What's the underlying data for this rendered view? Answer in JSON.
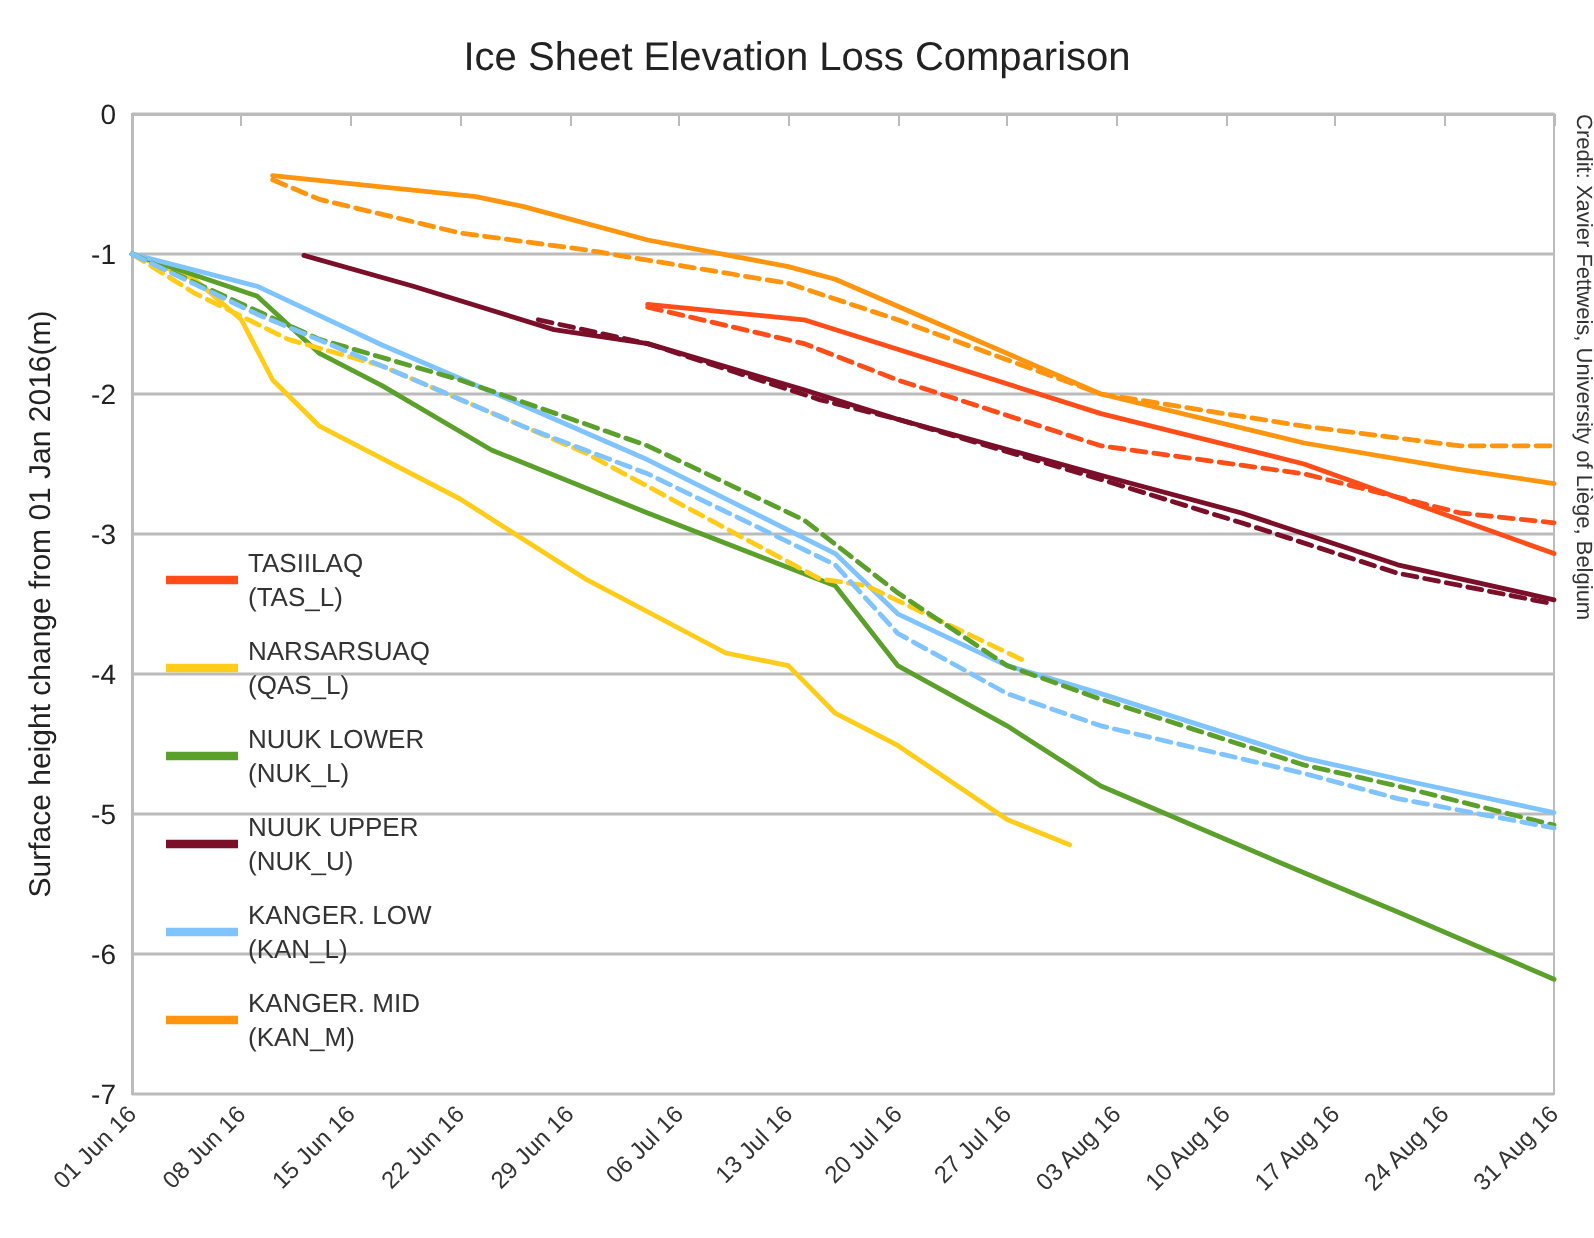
{
  "chart_data": {
    "type": "line",
    "title": "Ice Sheet Elevation Loss Comparison",
    "ylabel": "Surface height change from 01 Jan 2016(m)",
    "annotations": [
      "Credit: Xavier Fettweis, University of Liège, Belgium"
    ],
    "xlim": [
      "2016-06-01",
      "2016-08-31"
    ],
    "xticks": [
      {
        "value": "2016-06-01",
        "label": "01 Jun 16"
      },
      {
        "value": "2016-06-08",
        "label": "08 Jun 16"
      },
      {
        "value": "2016-06-15",
        "label": "15 Jun 16"
      },
      {
        "value": "2016-06-22",
        "label": "22 Jun 16"
      },
      {
        "value": "2016-06-29",
        "label": "29 Jun 16"
      },
      {
        "value": "2016-07-06",
        "label": "06 Jul 16"
      },
      {
        "value": "2016-07-13",
        "label": "13 Jul 16"
      },
      {
        "value": "2016-07-20",
        "label": "20 Jul 16"
      },
      {
        "value": "2016-07-27",
        "label": "27 Jul 16"
      },
      {
        "value": "2016-08-03",
        "label": "03 Aug 16"
      },
      {
        "value": "2016-08-10",
        "label": "10 Aug 16"
      },
      {
        "value": "2016-08-17",
        "label": "17 Aug 16"
      },
      {
        "value": "2016-08-24",
        "label": "24 Aug 16"
      },
      {
        "value": "2016-08-31",
        "label": "31 Aug 16"
      }
    ],
    "ylim": [
      -7,
      0
    ],
    "yticks": [
      -7,
      -6,
      -5,
      -4,
      -3,
      -2,
      -1,
      0
    ],
    "grid": "y",
    "legend": "left",
    "series": [
      {
        "name": "TASIILAQ\n(TAS_L)",
        "color": "#ff4d1a",
        "line_style": "solid",
        "x": [
          "2016-07-04",
          "2016-07-14",
          "2016-07-20",
          "2016-08-02",
          "2016-08-15",
          "2016-08-25",
          "2016-08-31"
        ],
        "values": [
          -1.36,
          -1.47,
          -1.68,
          -2.14,
          -2.5,
          -2.9,
          -3.14
        ]
      },
      {
        "name": "NARSARSUAQ\n(QAS_L)",
        "color": "#ffcc1a",
        "line_style": "solid",
        "x": [
          "2016-06-01",
          "2016-06-05",
          "2016-06-08",
          "2016-06-10",
          "2016-06-13",
          "2016-06-22",
          "2016-06-30",
          "2016-07-09",
          "2016-07-13",
          "2016-07-16",
          "2016-07-20",
          "2016-07-27",
          "2016-07-31"
        ],
        "values": [
          -1.0,
          -1.18,
          -1.47,
          -1.9,
          -2.23,
          -2.75,
          -3.32,
          -3.85,
          -3.94,
          -4.28,
          -4.51,
          -5.04,
          -5.22
        ]
      },
      {
        "name": "NUUK LOWER\n(NUK_L)",
        "color": "#5ca02c",
        "line_style": "solid",
        "x": [
          "2016-06-01",
          "2016-06-09",
          "2016-06-13",
          "2016-06-17",
          "2016-06-24",
          "2016-07-04",
          "2016-07-16",
          "2016-07-20",
          "2016-07-27",
          "2016-08-02",
          "2016-08-15",
          "2016-08-21",
          "2016-08-31"
        ],
        "values": [
          -1.0,
          -1.3,
          -1.71,
          -1.94,
          -2.4,
          -2.85,
          -3.37,
          -3.94,
          -4.37,
          -4.8,
          -5.42,
          -5.7,
          -6.18
        ]
      },
      {
        "name": "NUUK UPPER\n(NUK_U)",
        "color": "#7b0f2a",
        "line_style": "solid",
        "x": [
          "2016-06-12",
          "2016-06-19",
          "2016-06-28",
          "2016-07-04",
          "2016-07-14",
          "2016-07-20",
          "2016-08-02",
          "2016-08-11",
          "2016-08-21",
          "2016-08-31"
        ],
        "values": [
          -1.01,
          -1.23,
          -1.54,
          -1.64,
          -1.97,
          -2.18,
          -2.58,
          -2.85,
          -3.22,
          -3.47
        ]
      },
      {
        "name": "KANGER. LOW\n(KAN_L)",
        "color": "#7fc4ff",
        "line_style": "solid",
        "x": [
          "2016-06-01",
          "2016-06-09",
          "2016-06-17",
          "2016-06-26",
          "2016-07-04",
          "2016-07-16",
          "2016-07-20",
          "2016-07-27",
          "2016-08-02",
          "2016-08-15",
          "2016-08-21",
          "2016-08-31"
        ],
        "values": [
          -1.0,
          -1.23,
          -1.65,
          -2.08,
          -2.47,
          -3.14,
          -3.57,
          -3.94,
          -4.14,
          -4.6,
          -4.75,
          -4.99
        ]
      },
      {
        "name": "KANGER. MID\n(KAN_M)",
        "color": "#ff950e",
        "line_style": "solid",
        "x": [
          "2016-06-10",
          "2016-06-23",
          "2016-06-26",
          "2016-07-04",
          "2016-07-13",
          "2016-07-16",
          "2016-08-02",
          "2016-08-15",
          "2016-08-25",
          "2016-08-31"
        ],
        "values": [
          -0.44,
          -0.59,
          -0.66,
          -0.9,
          -1.09,
          -1.18,
          -2.0,
          -2.35,
          -2.54,
          -2.64
        ]
      },
      {
        "color": "#ff4d1a",
        "line_style": "dashed",
        "x": [
          "2016-07-04",
          "2016-07-14",
          "2016-07-20",
          "2016-08-02",
          "2016-08-15",
          "2016-08-25",
          "2016-08-31"
        ],
        "values": [
          -1.38,
          -1.64,
          -1.9,
          -2.37,
          -2.57,
          -2.85,
          -2.92
        ]
      },
      {
        "color": "#ffcc1a",
        "line_style": "dashed",
        "x": [
          "2016-06-01",
          "2016-06-05",
          "2016-06-11",
          "2016-06-17",
          "2016-06-30",
          "2016-07-15",
          "2016-07-18",
          "2016-07-28"
        ],
        "values": [
          -1.0,
          -1.28,
          -1.61,
          -1.8,
          -2.42,
          -3.32,
          -3.37,
          -3.9
        ]
      },
      {
        "color": "#5ca02c",
        "line_style": "dashed",
        "x": [
          "2016-06-01",
          "2016-06-13",
          "2016-06-22",
          "2016-07-04",
          "2016-07-14",
          "2016-07-20",
          "2016-07-27",
          "2016-08-02",
          "2016-08-15",
          "2016-08-21",
          "2016-08-31"
        ],
        "values": [
          -1.0,
          -1.61,
          -1.9,
          -2.37,
          -2.9,
          -3.42,
          -3.94,
          -4.18,
          -4.65,
          -4.8,
          -5.08
        ]
      },
      {
        "color": "#7b0f2a",
        "line_style": "dashed",
        "x": [
          "2016-06-27",
          "2016-07-04",
          "2016-07-15",
          "2016-07-20",
          "2016-08-02",
          "2016-08-11",
          "2016-08-21",
          "2016-08-31"
        ],
        "values": [
          -1.47,
          -1.64,
          -2.04,
          -2.18,
          -2.61,
          -2.92,
          -3.28,
          -3.5
        ]
      },
      {
        "color": "#7fc4ff",
        "line_style": "dashed",
        "x": [
          "2016-06-01",
          "2016-06-09",
          "2016-06-17",
          "2016-06-26",
          "2016-07-04",
          "2016-07-16",
          "2016-07-20",
          "2016-07-27",
          "2016-08-02",
          "2016-08-15",
          "2016-08-21",
          "2016-08-31"
        ],
        "values": [
          -1.0,
          -1.43,
          -1.8,
          -2.23,
          -2.57,
          -3.22,
          -3.71,
          -4.14,
          -4.37,
          -4.71,
          -4.89,
          -5.1
        ]
      },
      {
        "color": "#ff950e",
        "line_style": "dashed",
        "x": [
          "2016-06-10",
          "2016-06-13",
          "2016-06-22",
          "2016-06-30",
          "2016-07-13",
          "2016-07-20",
          "2016-08-02",
          "2016-08-15",
          "2016-08-25",
          "2016-08-31"
        ],
        "values": [
          -0.47,
          -0.61,
          -0.85,
          -0.97,
          -1.21,
          -1.47,
          -2.0,
          -2.23,
          -2.37,
          -2.37
        ]
      }
    ]
  }
}
